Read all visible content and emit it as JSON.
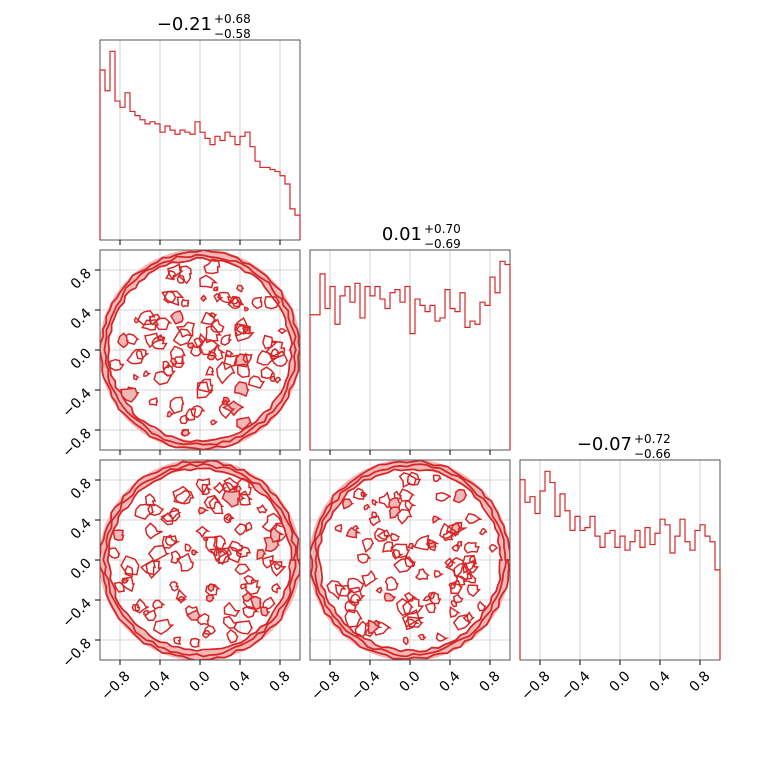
{
  "chart_data": {
    "type": "corner",
    "color": "#d62728",
    "fill_color": "#f2b8b8",
    "grid": true,
    "range": [
      -1.0,
      1.0
    ],
    "ticks": [
      "−0.8",
      "−0.4",
      "0.0",
      "0.4",
      "0.8"
    ],
    "tick_values": [
      -0.8,
      -0.4,
      0.0,
      0.4,
      0.8
    ],
    "diagonal": [
      {
        "title": {
          "median": "−0.21",
          "plus": "+0.68",
          "minus": "−0.58"
        },
        "bins": 40,
        "counts": [
          82,
          72,
          91,
          67,
          64,
          71,
          62,
          60,
          58,
          56,
          57,
          56,
          52,
          55,
          53,
          51,
          53,
          52,
          51,
          57,
          52,
          49,
          46,
          50,
          48,
          52,
          50,
          46,
          50,
          52,
          45,
          38,
          35,
          35,
          34,
          33,
          31,
          27,
          15,
          12
        ]
      },
      {
        "title": {
          "median": "0.01",
          "plus": "+0.70",
          "minus": "−0.69"
        },
        "bins": 40,
        "counts": [
          43,
          43,
          56,
          45,
          52,
          40,
          49,
          52,
          47,
          53,
          42,
          52,
          49,
          52,
          48,
          45,
          50,
          51,
          47,
          52,
          37,
          48,
          46,
          44,
          46,
          41,
          42,
          51,
          45,
          44,
          50,
          39,
          41,
          40,
          47,
          46,
          55,
          50,
          60,
          59
        ]
      },
      {
        "title": {
          "median": "−0.07",
          "plus": "+0.72",
          "minus": "−0.66"
        },
        "bins": 40,
        "counts": [
          64,
          56,
          58,
          52,
          60,
          67,
          63,
          51,
          59,
          53,
          46,
          51,
          46,
          47,
          51,
          44,
          40,
          45,
          46,
          40,
          44,
          39,
          42,
          46,
          40,
          47,
          41,
          45,
          50,
          48,
          38,
          44,
          50,
          42,
          39,
          46,
          48,
          44,
          42,
          32
        ]
      }
    ],
    "pairs": [
      {
        "row": 1,
        "col": 0,
        "shape": "disk",
        "radius": 1.0
      },
      {
        "row": 2,
        "col": 0,
        "shape": "disk",
        "radius": 1.0
      },
      {
        "row": 2,
        "col": 1,
        "shape": "disk",
        "radius": 1.0
      }
    ]
  }
}
